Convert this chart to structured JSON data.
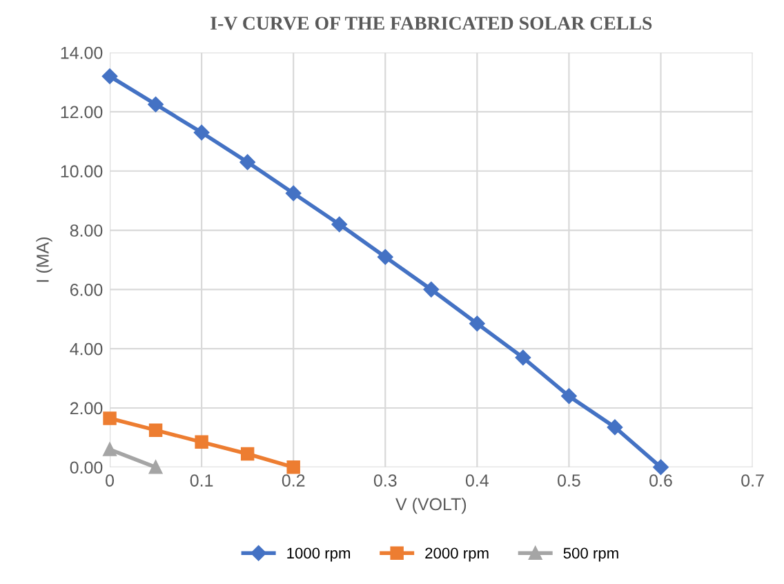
{
  "chart_data": {
    "type": "line",
    "title": "I-V CURVE OF THE FABRICATED SOLAR CELLS",
    "xlabel": "V (VOLT)",
    "ylabel": "I (MA)",
    "xlim": [
      0,
      0.7
    ],
    "xticks": [
      {
        "value": 0,
        "label": "0"
      },
      0.1,
      0.2,
      0.3,
      0.4,
      0.5,
      0.6,
      0.7
    ],
    "ylim": [
      0,
      14
    ],
    "yticks": [
      {
        "value": 0,
        "label": "0.00"
      },
      {
        "value": 2,
        "label": "2.00"
      },
      {
        "value": 4,
        "label": "4.00"
      },
      {
        "value": 6,
        "label": "6.00"
      },
      {
        "value": 8,
        "label": "8.00"
      },
      {
        "value": 10,
        "label": "10.00"
      },
      {
        "value": 12,
        "label": "12.00"
      },
      {
        "value": 14,
        "label": "14.00"
      }
    ],
    "grid": true,
    "legend": "bottom",
    "series": [
      {
        "name": "1000 rpm",
        "color": "#4472c4",
        "marker": "diamond",
        "x": [
          0,
          0.05,
          0.1,
          0.15,
          0.2,
          0.25,
          0.3,
          0.35,
          0.4,
          0.45,
          0.5,
          0.55,
          0.6
        ],
        "values": [
          13.2,
          12.25,
          11.3,
          10.3,
          9.25,
          8.2,
          7.1,
          6.0,
          4.85,
          3.7,
          2.4,
          1.35,
          0.0
        ]
      },
      {
        "name": "2000 rpm",
        "color": "#ed7d31",
        "marker": "square",
        "x": [
          0,
          0.05,
          0.1,
          0.15,
          0.2
        ],
        "values": [
          1.65,
          1.25,
          0.85,
          0.45,
          0.0
        ]
      },
      {
        "name": "500 rpm",
        "color": "#a5a5a5",
        "marker": "triangle",
        "x": [
          0,
          0.05
        ],
        "values": [
          0.6,
          0.0
        ]
      }
    ]
  }
}
